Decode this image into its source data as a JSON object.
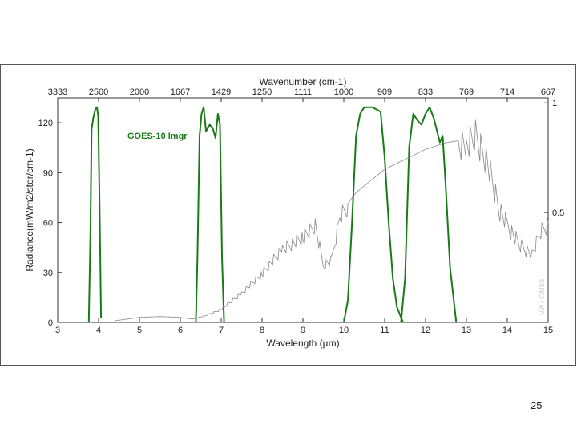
{
  "page": {
    "number": "25"
  },
  "chart_data": {
    "type": "line",
    "ylabel": "Radiance(mW/m2/ster/cm-1)",
    "xlabel": "Wavelength (µm)",
    "top_axis_label": "Wavenumber (cm-1)",
    "right_axis_ticks": [
      "1",
      "0.5"
    ],
    "xlim": [
      3,
      15
    ],
    "ylim": [
      0,
      135
    ],
    "x_ticks": [
      "3",
      "4",
      "5",
      "6",
      "7",
      "8",
      "9",
      "10",
      "11",
      "12",
      "13",
      "14",
      "15"
    ],
    "y_ticks": [
      "0",
      "30",
      "60",
      "90",
      "120"
    ],
    "top_ticks": [
      "3333",
      "2500",
      "2000",
      "1667",
      "1429",
      "1250",
      "1111",
      "1000",
      "909",
      "833",
      "769",
      "714",
      "667"
    ],
    "watermark": "UW / CIMSS",
    "series": [
      {
        "name": "GOES-10 Imgr",
        "color": "#1a7a1a",
        "axis": "right",
        "bands": [
          [
            [
              3.76,
              0
            ],
            [
              3.8,
              0.4
            ],
            [
              3.83,
              0.88
            ],
            [
              3.87,
              0.93
            ],
            [
              3.92,
              0.97
            ],
            [
              3.96,
              0.98
            ],
            [
              3.99,
              0.94
            ],
            [
              4.02,
              0.6
            ],
            [
              4.06,
              0.02
            ]
          ],
          [
            [
              6.38,
              0
            ],
            [
              6.42,
              0.3
            ],
            [
              6.47,
              0.85
            ],
            [
              6.52,
              0.95
            ],
            [
              6.57,
              0.98
            ],
            [
              6.63,
              0.87
            ],
            [
              6.72,
              0.9
            ],
            [
              6.8,
              0.88
            ],
            [
              6.86,
              0.84
            ],
            [
              6.92,
              0.95
            ],
            [
              6.97,
              0.9
            ],
            [
              7.02,
              0.3
            ],
            [
              7.07,
              0
            ]
          ],
          [
            [
              10.0,
              0
            ],
            [
              10.1,
              0.1
            ],
            [
              10.2,
              0.45
            ],
            [
              10.3,
              0.85
            ],
            [
              10.4,
              0.95
            ],
            [
              10.5,
              0.98
            ],
            [
              10.7,
              0.98
            ],
            [
              10.9,
              0.96
            ],
            [
              11.0,
              0.75
            ],
            [
              11.1,
              0.45
            ],
            [
              11.2,
              0.2
            ],
            [
              11.3,
              0.07
            ],
            [
              11.45,
              0
            ]
          ],
          [
            [
              11.4,
              0
            ],
            [
              11.5,
              0.2
            ],
            [
              11.6,
              0.8
            ],
            [
              11.7,
              0.95
            ],
            [
              11.8,
              0.92
            ],
            [
              11.9,
              0.9
            ],
            [
              12.0,
              0.95
            ],
            [
              12.1,
              0.98
            ],
            [
              12.2,
              0.93
            ],
            [
              12.35,
              0.82
            ],
            [
              12.42,
              0.85
            ],
            [
              12.5,
              0.6
            ],
            [
              12.6,
              0.25
            ],
            [
              12.75,
              0
            ]
          ]
        ]
      },
      {
        "name": "",
        "color": "#888888",
        "axis": "left",
        "points": [
          [
            4.4,
            1
          ],
          [
            5.0,
            3
          ],
          [
            5.5,
            3.5
          ],
          [
            6.0,
            3
          ],
          [
            6.3,
            2
          ],
          [
            6.6,
            4
          ],
          [
            7.0,
            8
          ],
          [
            7.5,
            18
          ],
          [
            8.0,
            30
          ],
          [
            8.5,
            45
          ],
          [
            9.0,
            52
          ],
          [
            9.3,
            60
          ],
          [
            9.5,
            35
          ],
          [
            9.7,
            38
          ],
          [
            9.9,
            65
          ],
          [
            10.3,
            78
          ],
          [
            11.0,
            92
          ],
          [
            11.5,
            98
          ],
          [
            12.0,
            104
          ],
          [
            12.5,
            108
          ],
          [
            13.0,
            110
          ],
          [
            13.2,
            115
          ],
          [
            13.5,
            100
          ],
          [
            13.8,
            70
          ],
          [
            14.0,
            60
          ],
          [
            14.3,
            48
          ],
          [
            14.6,
            42
          ],
          [
            14.8,
            55
          ],
          [
            15.0,
            60
          ]
        ]
      }
    ]
  }
}
